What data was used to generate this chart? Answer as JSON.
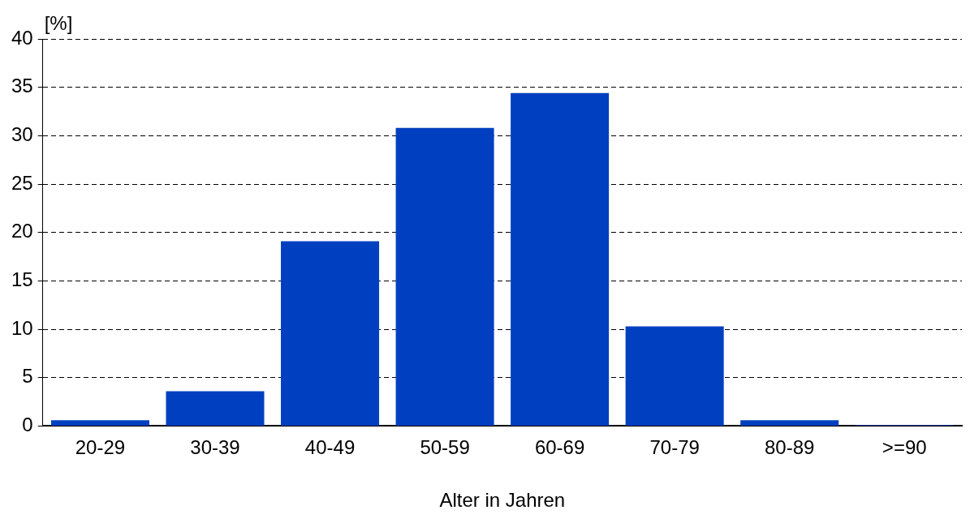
{
  "chart_data": {
    "type": "bar",
    "ylabel": "[%]",
    "xlabel": "Alter in Jahren",
    "categories": [
      "20-29",
      "30-39",
      "40-49",
      "50-59",
      "60-69",
      "70-79",
      "80-89",
      ">=90"
    ],
    "values": [
      0.6,
      3.6,
      19.1,
      30.8,
      34.4,
      10.3,
      0.6,
      0.1
    ],
    "color": "#0040c0",
    "ylim": [
      0,
      40
    ],
    "yticks": [
      0,
      5,
      10,
      15,
      20,
      25,
      30,
      35,
      40
    ],
    "grid": "y",
    "line_style": "dashed",
    "legend": false
  }
}
